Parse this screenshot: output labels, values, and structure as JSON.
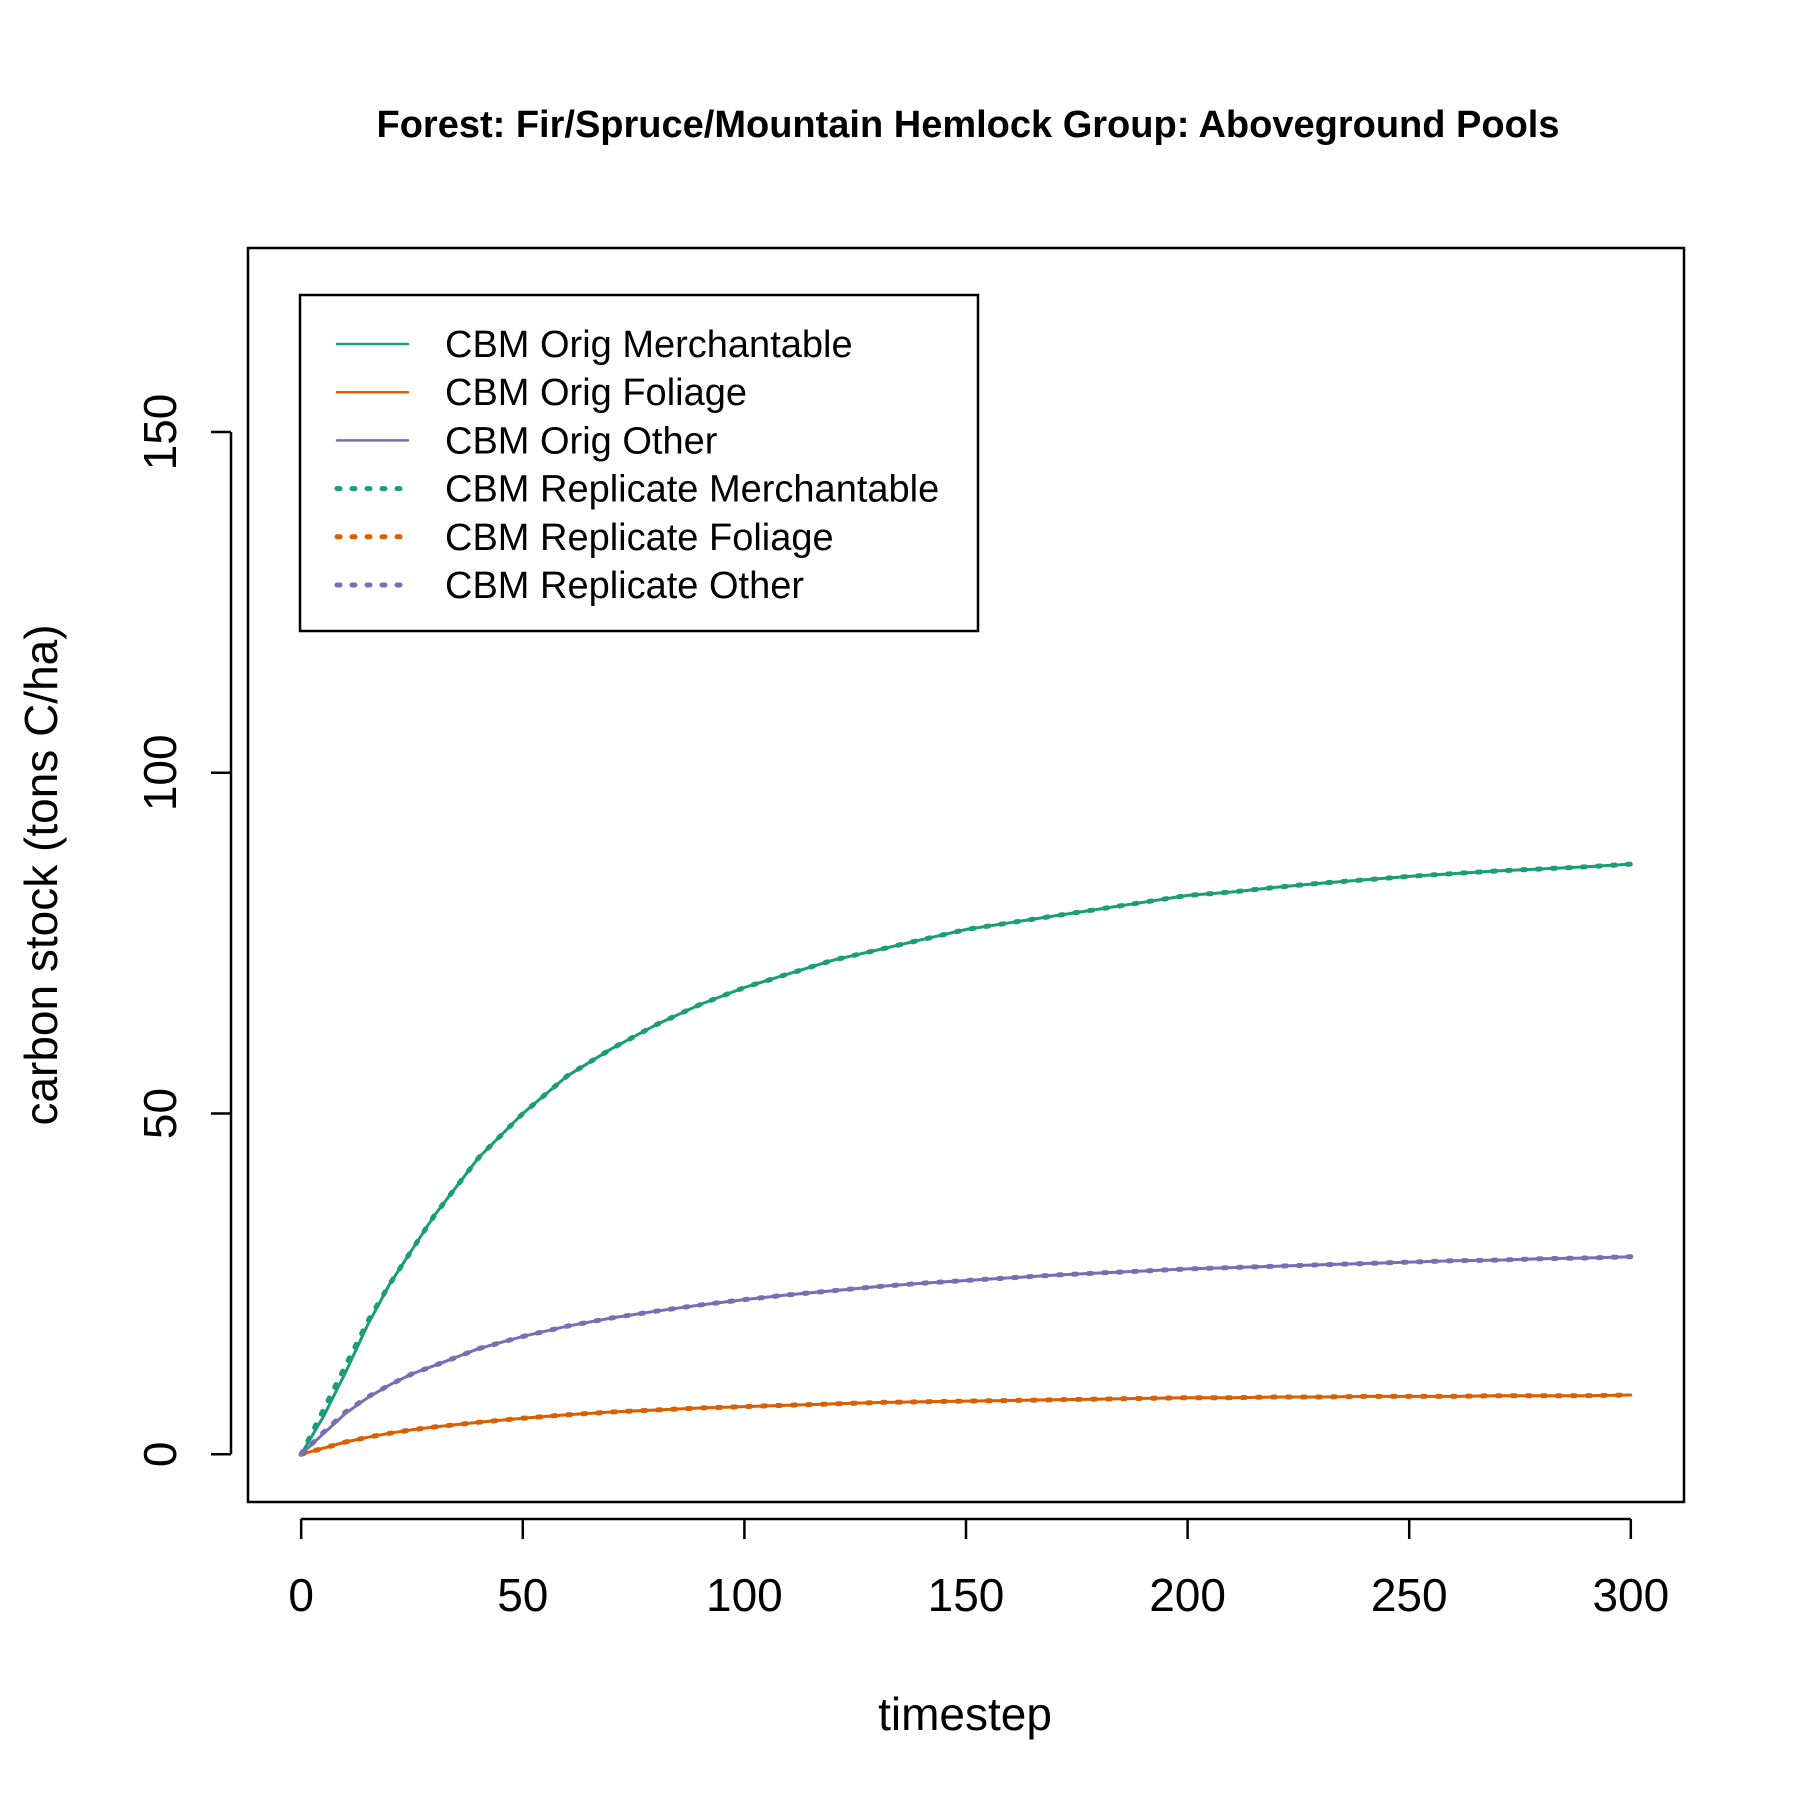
{
  "chart_data": {
    "type": "line",
    "title": "Forest: Fir/Spruce/Mountain Hemlock Group: Aboveground Pools",
    "xlabel": "timestep",
    "ylabel": "carbon stock (tons C/ha)",
    "xlim": [
      -12,
      312
    ],
    "ylim": [
      -7,
      177
    ],
    "x_ticks": [
      0,
      50,
      100,
      150,
      200,
      250,
      300
    ],
    "y_ticks": [
      0,
      50,
      100,
      150
    ],
    "grid": false,
    "legend_position": "top-left",
    "x": [
      0,
      5,
      10,
      15,
      20,
      25,
      30,
      40,
      50,
      60,
      70,
      80,
      90,
      100,
      110,
      120,
      130,
      140,
      150,
      160,
      170,
      180,
      190,
      200,
      210,
      220,
      230,
      240,
      250,
      260,
      270,
      280,
      290,
      300
    ],
    "series": [
      {
        "name": "CBM Orig Merchantable",
        "color": "#1b9e77",
        "style": "solid",
        "values": [
          0,
          5.5,
          12,
          19,
          25,
          30,
          35,
          43.5,
          50,
          55.5,
          59.5,
          63,
          66,
          68.5,
          70.5,
          72.5,
          74,
          75.5,
          77,
          78,
          79,
          80,
          81,
          82,
          82.5,
          83.2,
          83.8,
          84.3,
          84.8,
          85.2,
          85.6,
          85.9,
          86.2,
          86.6
        ]
      },
      {
        "name": "CBM Orig Foliage",
        "color": "#d95f02",
        "style": "solid",
        "values": [
          0,
          0.9,
          1.8,
          2.5,
          3.1,
          3.6,
          4,
          4.7,
          5.3,
          5.8,
          6.2,
          6.5,
          6.8,
          7,
          7.2,
          7.4,
          7.6,
          7.7,
          7.8,
          7.9,
          8,
          8.1,
          8.2,
          8.3,
          8.3,
          8.4,
          8.4,
          8.5,
          8.5,
          8.5,
          8.6,
          8.6,
          8.6,
          8.7
        ]
      },
      {
        "name": "CBM Orig Other",
        "color": "#7570b3",
        "style": "solid",
        "values": [
          0,
          3,
          6,
          8.3,
          10.2,
          11.8,
          13,
          15.5,
          17.3,
          18.8,
          20,
          21,
          21.9,
          22.7,
          23.4,
          24,
          24.6,
          25.1,
          25.5,
          25.9,
          26.3,
          26.6,
          26.9,
          27.2,
          27.4,
          27.6,
          27.8,
          28,
          28.2,
          28.4,
          28.5,
          28.7,
          28.8,
          29
        ]
      },
      {
        "name": "CBM Replicate Merchantable",
        "color": "#1b9e77",
        "style": "dotted",
        "values": [
          0,
          6.5,
          13,
          19.5,
          25,
          30,
          35,
          43.5,
          50,
          55.5,
          59.5,
          63,
          66,
          68.5,
          70.5,
          72.5,
          74,
          75.5,
          77,
          78,
          79,
          80,
          81,
          82,
          82.5,
          83.2,
          83.8,
          84.3,
          84.8,
          85.2,
          85.6,
          85.9,
          86.2,
          86.6
        ]
      },
      {
        "name": "CBM Replicate Foliage",
        "color": "#d95f02",
        "style": "dotted",
        "values": [
          0,
          0.9,
          1.8,
          2.5,
          3.1,
          3.6,
          4,
          4.7,
          5.3,
          5.8,
          6.2,
          6.5,
          6.8,
          7,
          7.2,
          7.4,
          7.6,
          7.7,
          7.8,
          7.9,
          8,
          8.1,
          8.2,
          8.3,
          8.3,
          8.4,
          8.4,
          8.5,
          8.5,
          8.5,
          8.6,
          8.6,
          8.6,
          8.7
        ]
      },
      {
        "name": "CBM Replicate Other",
        "color": "#7570b3",
        "style": "dotted",
        "values": [
          0,
          3.2,
          6.2,
          8.4,
          10.2,
          11.8,
          13,
          15.5,
          17.3,
          18.8,
          20,
          21,
          21.9,
          22.7,
          23.4,
          24,
          24.6,
          25.1,
          25.5,
          25.9,
          26.3,
          26.6,
          26.9,
          27.2,
          27.4,
          27.6,
          27.8,
          28,
          28.2,
          28.4,
          28.5,
          28.7,
          28.8,
          29
        ]
      }
    ]
  }
}
